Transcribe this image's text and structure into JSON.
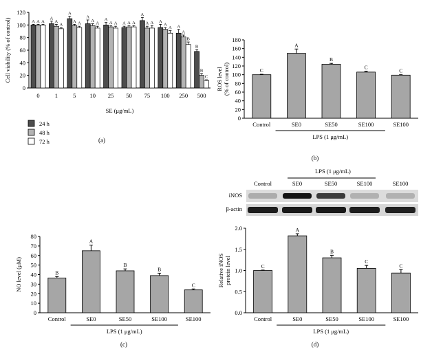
{
  "figure": {
    "colors": {
      "bar_24h": "#4d4d4d",
      "bar_48h": "#b3b3b3",
      "bar_72h": "#ffffff",
      "bar_single": "#a6a6a6",
      "axis": "#000000"
    }
  },
  "chart_data": [
    {
      "panel": "(a)",
      "type": "bar",
      "ylabel": "Cell viability (% of control)",
      "xlabel": "SE (μg/mL)",
      "ylim": [
        0,
        120
      ],
      "yticks": [
        0,
        20,
        40,
        60,
        80,
        100,
        120
      ],
      "categories": [
        "0",
        "1",
        "5",
        "10",
        "25",
        "50",
        "75",
        "100",
        "250",
        "500"
      ],
      "series": [
        {
          "name": "24 h",
          "values": [
            100,
            102,
            110,
            102,
            100,
            96,
            107,
            96,
            87,
            58
          ],
          "errors": [
            1,
            4,
            4,
            6,
            4,
            2,
            5,
            5,
            6,
            3
          ],
          "letters": [
            "A",
            "A",
            "A",
            "A",
            "A",
            "A",
            "A",
            "A",
            "A",
            "B"
          ]
        },
        {
          "name": "48 h",
          "values": [
            100,
            98,
            99,
            99,
            97,
            97,
            95,
            93,
            81,
            20
          ],
          "errors": [
            1,
            3,
            2,
            3,
            2,
            2,
            3,
            3,
            3,
            3
          ],
          "letters": [
            "A",
            "A",
            "A",
            "A",
            "A",
            "A",
            "A",
            "A",
            "A",
            "B"
          ]
        },
        {
          "name": "72 h",
          "values": [
            100,
            94,
            96,
            95,
            95,
            97,
            95,
            87,
            69,
            12
          ],
          "errors": [
            1,
            2,
            2,
            3,
            3,
            2,
            4,
            4,
            4,
            1
          ],
          "letters": [
            "A",
            "A",
            "A",
            "A",
            "A",
            "A",
            "A",
            "A",
            "B",
            "C"
          ]
        }
      ],
      "legend": [
        "24 h",
        "48 h",
        "72 h"
      ]
    },
    {
      "panel": "(b)",
      "type": "bar",
      "ylabel_line1": "ROS level",
      "ylabel_line2": "(% of control)",
      "ylim": [
        0,
        180
      ],
      "yticks": [
        0,
        20,
        40,
        60,
        80,
        100,
        120,
        140,
        160,
        180
      ],
      "categories": [
        "Control",
        "SE0",
        "SE50",
        "SE100",
        "SE100"
      ],
      "values": [
        100,
        149,
        124,
        106,
        99
      ],
      "errors": [
        1,
        10,
        2,
        2,
        1
      ],
      "letters": [
        "C",
        "A",
        "B",
        "C",
        "C"
      ],
      "group_label": "LPS (1 μg/mL)"
    },
    {
      "panel": "(c)",
      "type": "bar",
      "ylabel": "NO level (μM)",
      "ylim": [
        0,
        80
      ],
      "yticks": [
        0,
        10,
        20,
        30,
        40,
        50,
        60,
        70,
        80
      ],
      "categories": [
        "Control",
        "SE0",
        "SE50",
        "SE100",
        "SE100"
      ],
      "values": [
        36.5,
        65,
        44,
        39,
        24
      ],
      "errors": [
        1.5,
        6,
        2,
        2.5,
        1
      ],
      "letters": [
        "B",
        "A",
        "B",
        "B",
        "C"
      ],
      "group_label": "LPS (1 μg/mL)"
    },
    {
      "panel": "(d)",
      "type": "bar",
      "ylabel_line1": "Relative iNOS",
      "ylabel_line2": "protein level",
      "ylim": [
        0,
        2.0
      ],
      "yticks": [
        0,
        0.5,
        1.0,
        1.5,
        2.0
      ],
      "ytick_labels": [
        "0.0",
        "0.5",
        "1.0",
        "1.5",
        "2.0"
      ],
      "categories": [
        "Control",
        "SE0",
        "SE50",
        "SE100",
        "SE100"
      ],
      "values": [
        1.0,
        1.82,
        1.3,
        1.05,
        0.94
      ],
      "errors": [
        0.01,
        0.05,
        0.06,
        0.07,
        0.08
      ],
      "letters": [
        "C",
        "A",
        "B",
        "C",
        "C"
      ],
      "group_label": "LPS (1 μg/mL)",
      "blot": {
        "group_label": "LPS (1 μg/mL)",
        "lanes": [
          "Control",
          "SE0",
          "SE50",
          "SE100",
          "SE100"
        ],
        "rows": [
          "iNOS",
          "β-actin"
        ],
        "inos_intensity": [
          0.15,
          0.95,
          0.75,
          0.12,
          0.12
        ],
        "actin_intensity": [
          0.9,
          0.92,
          0.92,
          0.9,
          0.88
        ]
      }
    }
  ]
}
